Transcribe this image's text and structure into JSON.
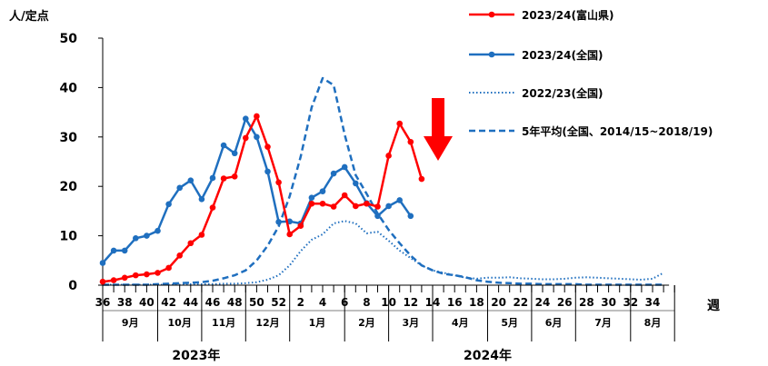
{
  "chart_data": {
    "type": "line",
    "ylabel": "人/定点",
    "xlabel": "週",
    "ylim": [
      0,
      50
    ],
    "yticks": [
      0,
      10,
      20,
      30,
      40,
      50
    ],
    "x_labels": [
      "36",
      "38",
      "40",
      "42",
      "44",
      "46",
      "48",
      "50",
      "52",
      "2",
      "4",
      "6",
      "8",
      "10",
      "12",
      "14",
      "16",
      "18",
      "20",
      "22",
      "24",
      "26",
      "28",
      "30",
      "32",
      "34"
    ],
    "months": [
      "9月",
      "10月",
      "11月",
      "12月",
      "1月",
      "2月",
      "3月",
      "4月",
      "5月",
      "6月",
      "7月",
      "8月"
    ],
    "years": [
      "2023年",
      "2024年"
    ],
    "legend_position": "top-right",
    "series": [
      {
        "name": "2023/24(富山県)",
        "color": "#ff0000",
        "style": "solid-marker",
        "values": [
          0.7,
          1.0,
          1.5,
          2.0,
          2.2,
          2.5,
          3.5,
          6.0,
          8.5,
          10.2,
          15.7,
          21.6,
          22.0,
          29.8,
          34.2,
          28.0,
          20.8,
          10.3,
          12.0,
          16.5,
          16.5,
          15.9,
          18.2,
          16.0,
          16.5,
          15.9,
          26.2,
          32.7,
          29.0,
          21.5
        ]
      },
      {
        "name": "2023/24(全国)",
        "color": "#1f6fbf",
        "style": "solid-marker",
        "values": [
          4.5,
          7.0,
          7.0,
          9.5,
          10.0,
          11.0,
          16.4,
          19.7,
          21.2,
          17.4,
          21.7,
          28.3,
          26.7,
          33.7,
          30.0,
          23.0,
          12.8,
          12.9,
          12.5,
          17.7,
          19.0,
          22.6,
          23.9,
          20.6,
          16.6,
          14.0,
          16.0,
          17.2,
          14.0
        ]
      },
      {
        "name": "2022/23(全国)",
        "color": "#1f6fbf",
        "style": "dotted",
        "values": [
          0.1,
          0.1,
          0.1,
          0.1,
          0.1,
          0.1,
          0.1,
          0.1,
          0.2,
          0.2,
          0.2,
          0.3,
          0.3,
          0.4,
          0.6,
          1.1,
          2.0,
          4.0,
          6.9,
          9.2,
          10.3,
          12.5,
          13.0,
          12.5,
          10.5,
          10.8,
          9.0,
          7.0,
          5.5,
          4.0,
          3.0,
          2.5,
          2.0,
          1.5,
          1.3,
          1.5,
          1.5,
          1.6,
          1.4,
          1.3,
          1.2,
          1.2,
          1.3,
          1.5,
          1.6,
          1.5,
          1.4,
          1.3,
          1.2,
          1.1,
          1.3,
          2.5
        ]
      },
      {
        "name": "5年平均(全国、2014/15~2018/19)",
        "color": "#1f6fbf",
        "style": "dashed",
        "values": [
          0.1,
          0.1,
          0.1,
          0.1,
          0.1,
          0.2,
          0.3,
          0.4,
          0.5,
          0.6,
          0.9,
          1.4,
          2.0,
          3.0,
          5.0,
          8.0,
          11.9,
          18.0,
          26.0,
          36.0,
          41.9,
          40.5,
          30.5,
          22.3,
          18.5,
          14.5,
          11.2,
          8.5,
          6.0,
          4.0,
          3.0,
          2.3,
          2.0,
          1.6,
          1.0,
          0.7,
          0.5,
          0.4,
          0.3,
          0.3,
          0.2,
          0.2,
          0.2,
          0.2,
          0.1,
          0.1,
          0.1,
          0.1,
          0.1,
          0.1,
          0.1,
          0.1
        ]
      }
    ],
    "annotation": {
      "type": "down-arrow",
      "color": "#ff0000"
    }
  }
}
